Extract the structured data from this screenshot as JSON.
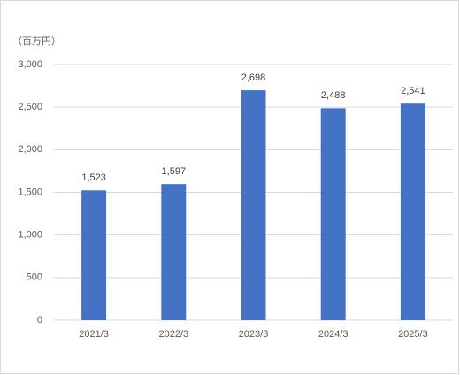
{
  "chart_data": {
    "type": "bar",
    "y_unit_label": "（百万円）",
    "categories": [
      "2021/3",
      "2022/3",
      "2023/3",
      "2024/3",
      "2025/3"
    ],
    "values": [
      1523,
      1597,
      2698,
      2488,
      2541
    ],
    "value_labels": [
      "1,523",
      "1,597",
      "2,698",
      "2,488",
      "2,541"
    ],
    "color": "#4472c4",
    "ylim": [
      0,
      3000
    ],
    "yticks": [
      0,
      500,
      {
        "value": 1000,
        "label": "1,000"
      },
      {
        "value": 1500,
        "label": "1,500"
      },
      {
        "value": 2000,
        "label": "2,000"
      },
      {
        "value": 2500,
        "label": "2,500"
      },
      {
        "value": 3000,
        "label": "3,000"
      }
    ],
    "grid": true
  }
}
